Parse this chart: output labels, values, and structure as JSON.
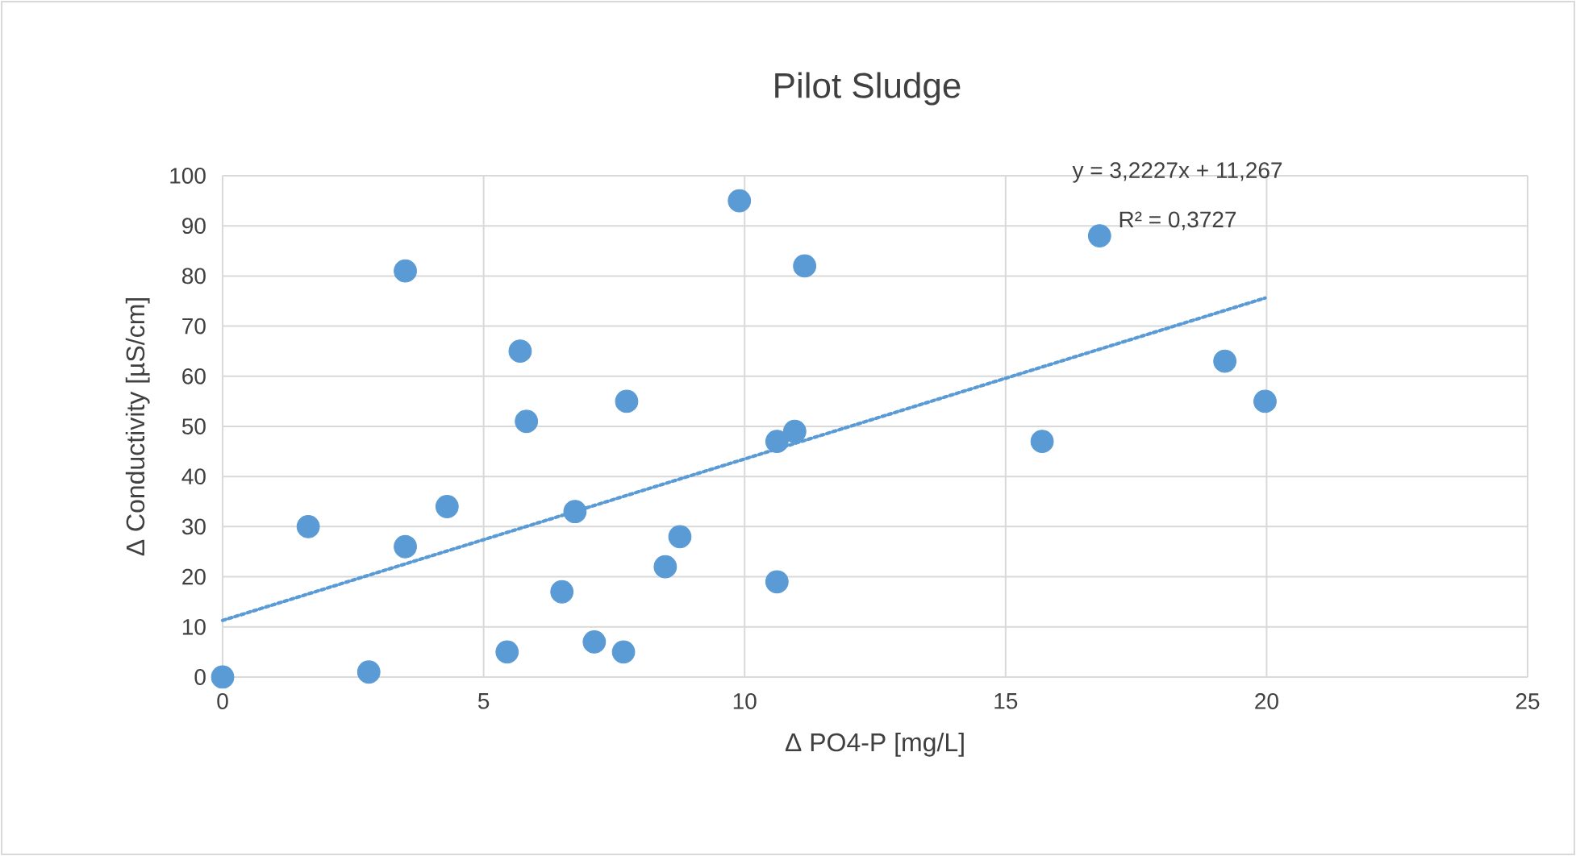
{
  "chart_data": {
    "type": "scatter",
    "title": "Pilot Sludge",
    "xlabel": "Δ PO4-P [mg/L]",
    "ylabel": "Δ Conductivity [µS/cm]",
    "xlim": [
      0,
      25
    ],
    "xticks": [
      0,
      5,
      10,
      15,
      20,
      25
    ],
    "ylim": [
      0,
      100
    ],
    "yticks": [
      0,
      10,
      20,
      30,
      40,
      50,
      60,
      70,
      80,
      90,
      100
    ],
    "grid": true,
    "annotations": [
      "y = 3,2227x + 11,267",
      "R² = 0,3727"
    ],
    "series": [
      {
        "marker": "circle",
        "color": "#5b9bd5",
        "x": [
          0,
          2.8,
          1.64,
          3.5,
          3.5,
          4.3,
          5.7,
          5.82,
          5.45,
          6.5,
          6.75,
          7.12,
          7.68,
          7.74,
          8.48,
          8.76,
          9.9,
          10.62,
          10.62,
          10.96,
          11.15,
          15.7,
          16.8,
          19.2,
          19.97
        ],
        "values": [
          0,
          1,
          30,
          81,
          26,
          34,
          65,
          51,
          5,
          17,
          33,
          7,
          5,
          55,
          22,
          28,
          95,
          19,
          47,
          49,
          82,
          47,
          88,
          63,
          55
        ]
      },
      {
        "type": "line",
        "marker": "none",
        "line_style": "dotted",
        "color": "#5b9bd5",
        "x": [
          0,
          19.97
        ],
        "values": [
          11.3,
          75.6
        ]
      }
    ]
  }
}
